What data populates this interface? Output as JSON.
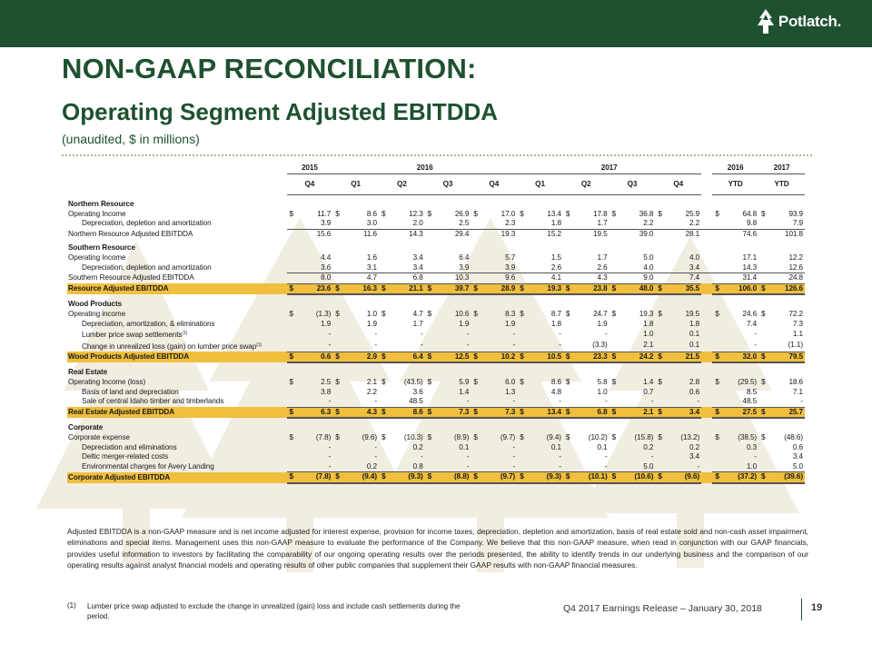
{
  "header": {
    "logo_text": "Potlatch."
  },
  "title": {
    "line1": "NON-GAAP RECONCILIATION:",
    "line2": "Operating Segment Adjusted EBITDDA",
    "subtitle": "(unaudited,  $ in millions)"
  },
  "table": {
    "years": {
      "y2015": "2015",
      "y2016": "2016",
      "y2017": "2017",
      "ytd2016": "2016",
      "ytd2017": "2017"
    },
    "quarters": [
      "Q4",
      "Q1",
      "Q2",
      "Q3",
      "Q4",
      "Q1",
      "Q2",
      "Q3",
      "Q4"
    ],
    "ytd_labels": [
      "YTD",
      "YTD"
    ],
    "sections": [
      {
        "title": "Northern Resource",
        "rows": [
          {
            "label": "Operating Income",
            "style": "first",
            "values": [
              "11.7",
              "8.6",
              "12.3",
              "26.9",
              "17.0",
              "13.4",
              "17.8",
              "36.8",
              "25.9",
              "64.8",
              "93.9"
            ]
          },
          {
            "label": "Depreciation, depletion and amortization",
            "style": "sub",
            "values": [
              "3.9",
              "3.0",
              "2.0",
              "2.5",
              "2.3",
              "1.8",
              "1.7",
              "2.2",
              "2.2",
              "9.8",
              "7.9"
            ]
          },
          {
            "label": "Northern Resource Adjusted EBITDDA",
            "style": "total",
            "values": [
              "15.6",
              "11.6",
              "14.3",
              "29.4",
              "19.3",
              "15.2",
              "19.5",
              "39.0",
              "28.1",
              "74.6",
              "101.8"
            ]
          }
        ]
      },
      {
        "title": "Southern Resource",
        "rows": [
          {
            "label": "Operating Income",
            "style": "plain",
            "values": [
              "4.4",
              "1.6",
              "3.4",
              "6.4",
              "5.7",
              "1.5",
              "1.7",
              "5.0",
              "4.0",
              "17.1",
              "12.2"
            ]
          },
          {
            "label": "Depreciation, depletion and amortization",
            "style": "sub",
            "values": [
              "3.6",
              "3.1",
              "3.4",
              "3.9",
              "3.9",
              "2.6",
              "2.6",
              "4.0",
              "3.4",
              "14.3",
              "12.6"
            ]
          },
          {
            "label": "Southern Resource Adjusted EBITDDA",
            "style": "total",
            "values": [
              "8.0",
              "4.7",
              "6.8",
              "10.3",
              "9.6",
              "4.1",
              "4.3",
              "9.0",
              "7.4",
              "31.4",
              "24.8"
            ]
          },
          {
            "label": "Resource Adjusted EBITDDA",
            "style": "highlight",
            "values": [
              "23.6",
              "16.3",
              "21.1",
              "39.7",
              "28.9",
              "19.3",
              "23.8",
              "48.0",
              "35.5",
              "106.0",
              "126.6"
            ]
          }
        ]
      },
      {
        "title": "Wood Products",
        "rows": [
          {
            "label": "Operating income",
            "style": "first",
            "values": [
              "(1.3)",
              "1.0",
              "4.7",
              "10.6",
              "8.3",
              "8.7",
              "24.7",
              "19.3",
              "19.5",
              "24.6",
              "72.2"
            ]
          },
          {
            "label": "Depreciation, amortization, & eliminations",
            "style": "sub",
            "values": [
              "1.9",
              "1.9",
              "1.7",
              "1.9",
              "1.9",
              "1.8",
              "1.9",
              "1.8",
              "1.8",
              "7.4",
              "7.3"
            ]
          },
          {
            "label": "Lumber price swap settlements",
            "sup": "(1)",
            "style": "sub",
            "values": [
              "-",
              "-",
              "-",
              "-",
              "-",
              "-",
              "-",
              "1.0",
              "0.1",
              "-",
              "1.1"
            ]
          },
          {
            "label": "Change in unrealized loss (gain) on lumber price swap",
            "sup": "(1)",
            "style": "sub",
            "values": [
              "-",
              "-",
              "-",
              "-",
              "-",
              "-",
              "(3.3)",
              "2.1",
              "0.1",
              "-",
              "(1.1)"
            ]
          },
          {
            "label": "Wood Products Adjusted EBITDDA",
            "style": "highlight",
            "values": [
              "0.6",
              "2.9",
              "6.4",
              "12.5",
              "10.2",
              "10.5",
              "23.3",
              "24.2",
              "21.5",
              "32.0",
              "79.5"
            ]
          }
        ]
      },
      {
        "title": "Real Estate",
        "rows": [
          {
            "label": "Operating Income (loss)",
            "style": "first",
            "values": [
              "2.5",
              "2.1",
              "(43.5)",
              "5.9",
              "6.0",
              "8.6",
              "5.8",
              "1.4",
              "2.8",
              "(29.5)",
              "18.6"
            ]
          },
          {
            "label": "Basis of land and depreciation",
            "style": "sub",
            "values": [
              "3.8",
              "2.2",
              "3.6",
              "1.4",
              "1.3",
              "4.8",
              "1.0",
              "0.7",
              "0.6",
              "8.5",
              "7.1"
            ]
          },
          {
            "label": "Sale of central Idaho timber and timberlands",
            "style": "sub",
            "values": [
              "-",
              "-",
              "48.5",
              "-",
              "-",
              "-",
              "-",
              "-",
              "-",
              "48.5",
              "-"
            ]
          },
          {
            "label": "Real Estate Adjusted EBITDDA",
            "style": "highlight",
            "values": [
              "6.3",
              "4.3",
              "8.6",
              "7.3",
              "7.3",
              "13.4",
              "6.8",
              "2.1",
              "3.4",
              "27.5",
              "25.7"
            ]
          }
        ]
      },
      {
        "title": "Corporate",
        "rows": [
          {
            "label": "Corporate expense",
            "style": "first",
            "values": [
              "(7.8)",
              "(9.6)",
              "(10.3)",
              "(8.9)",
              "(9.7)",
              "(9.4)",
              "(10.2)",
              "(15.8)",
              "(13.2)",
              "(38.5)",
              "(48.6)"
            ]
          },
          {
            "label": "Depreciation and eliminations",
            "style": "sub",
            "values": [
              "-",
              "-",
              "0.2",
              "0.1",
              "-",
              "0.1",
              "0.1",
              "0.2",
              "0.2",
              "0.3",
              "0.6"
            ]
          },
          {
            "label": "Deltic merger-related costs",
            "style": "sub",
            "values": [
              "-",
              "-",
              "-",
              "-",
              "-",
              "-",
              "-",
              "-",
              "3.4",
              "-",
              "3.4"
            ]
          },
          {
            "label": "Environmental charges for Avery Landing",
            "style": "sub",
            "values": [
              "-",
              "0.2",
              "0.8",
              "-",
              "-",
              "-",
              "-",
              "5.0",
              "-",
              "1.0",
              "5.0"
            ]
          },
          {
            "label": "Corporate Adjusted EBITDDA",
            "style": "highlight",
            "values": [
              "(7.8)",
              "(9.4)",
              "(9.3)",
              "(8.8)",
              "(9.7)",
              "(9.3)",
              "(10.1)",
              "(10.6)",
              "(9.6)",
              "(37.2)",
              "(39.6)"
            ]
          }
        ]
      }
    ],
    "dollar_sign": "$"
  },
  "description": "Adjusted EBITDDA  is a non-GAAP measure and is net income adjusted for interest expense, provision for income taxes, depreciation, depletion and amortization, basis of real estate sold and non-cash asset impairment, eliminations  and special items.  Management uses this non-GAAP measure to evaluate the performance of the Company. We believe that this non-GAAP measure,  when read in conjunction with our GAAP financials, provides useful information to investors by facilitating the comparability of our ongoing operating results over the periods presented, the ability to identify trends in our underlying business and the comparison of our operating results against analyst financial models  and operating results of other public companies that supplement their GAAP results with non-GAAP financial measures.",
  "footnote": {
    "number": "(1)",
    "text": "Lumber price swap adjusted to exclude the change in unrealized (gain) loss and include cash settlements during the period."
  },
  "footer": {
    "release": "Q4 2017 Earnings Release – January 30, 2018",
    "page": "19"
  },
  "colors": {
    "brand_green": "#1e5130",
    "highlight": "#f0bf3e",
    "tree_watermark": "#f1ede1"
  }
}
